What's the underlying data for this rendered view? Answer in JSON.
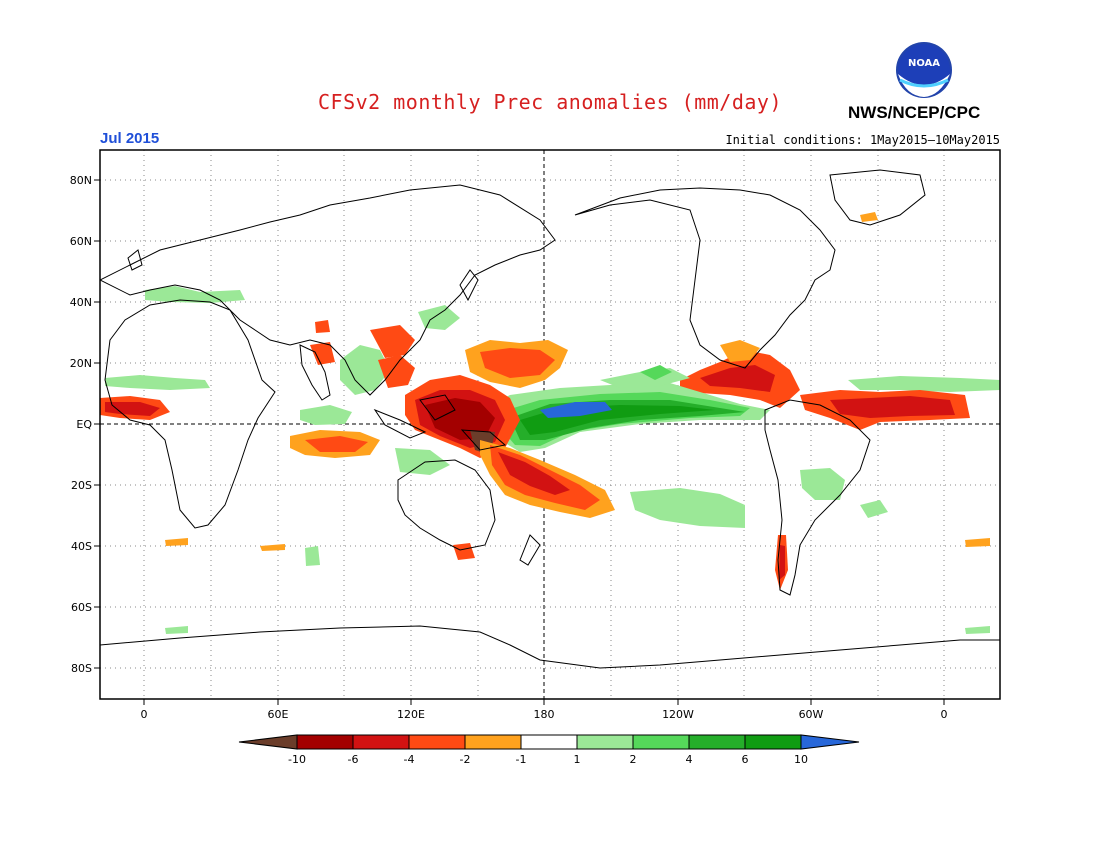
{
  "title": "CFSv2 monthly Prec anomalies (mm/day)",
  "agency": "NWS/NCEP/CPC",
  "logo_text": "NOAA",
  "month": "Jul 2015",
  "initial_conditions": "Initial conditions: 1May2015–10May2015",
  "lat_labels": [
    "80N",
    "60N",
    "40N",
    "20N",
    "EQ",
    "20S",
    "40S",
    "60S",
    "80S"
  ],
  "lon_labels": [
    "0",
    "60E",
    "120E",
    "180",
    "120W",
    "60W",
    "0"
  ],
  "legend": {
    "labels": [
      "-10",
      "-6",
      "-4",
      "-2",
      "-1",
      "1",
      "2",
      "4",
      "6",
      "10"
    ],
    "colors": [
      "#6b3d2a",
      "#a30000",
      "#d21212",
      "#ff4a14",
      "#ffa21e",
      "#ffffff",
      "#9be897",
      "#55d85a",
      "#25ae2a",
      "#109c12",
      "#2767d9"
    ]
  },
  "anomaly_colors": {
    "dry_extreme": "#8b0000",
    "dry_strong": "#d21212",
    "dry_moderate": "#ff4a14",
    "dry_weak": "#ffa21e",
    "wet_weak": "#9be897",
    "wet_moderate": "#55d85a",
    "wet_strong": "#25ae2a",
    "wet_extreme": "#2767d9"
  }
}
